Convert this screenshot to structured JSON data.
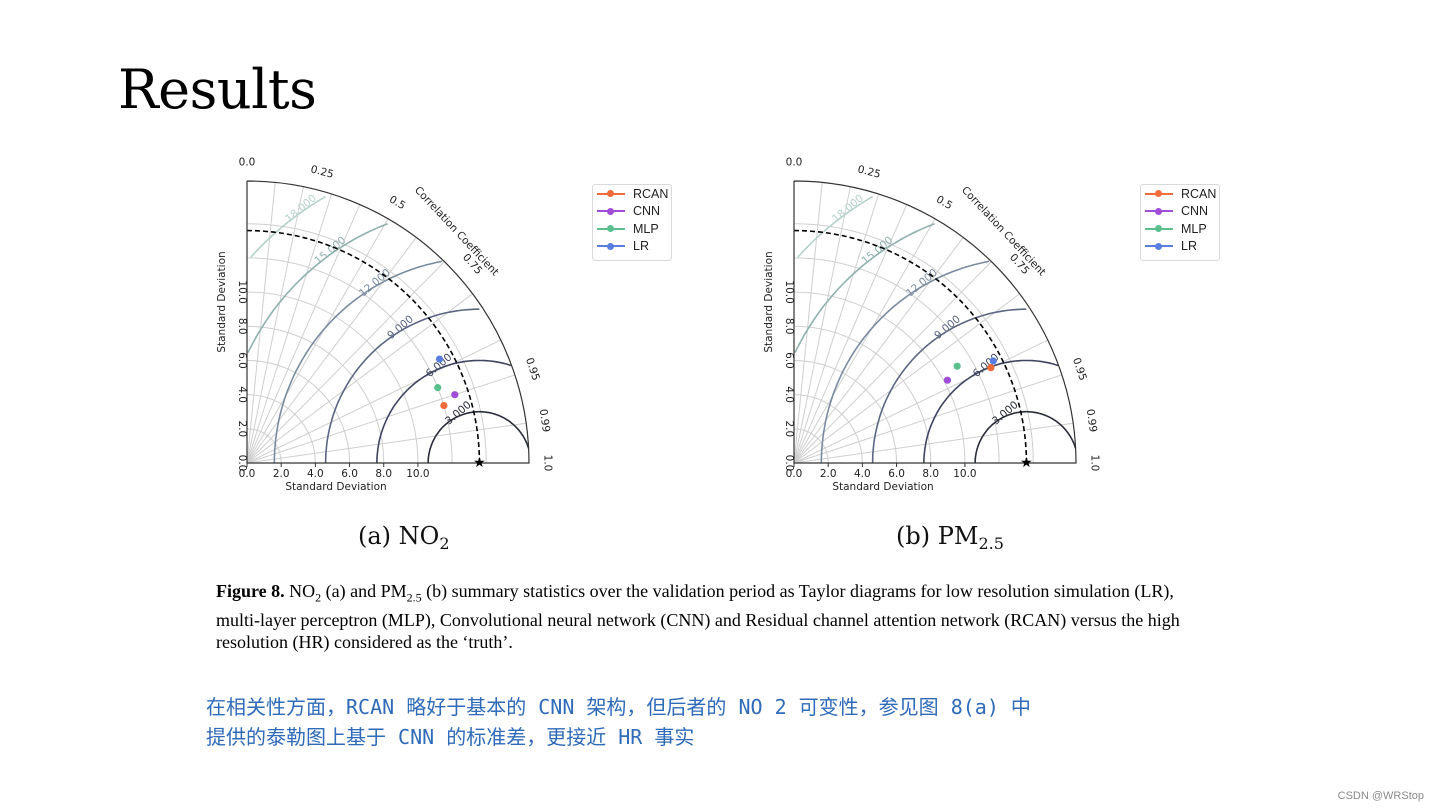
{
  "slide": {
    "title": "Results",
    "watermark": "CSDN @WRStop"
  },
  "caption": {
    "label": "Figure 8.",
    "p1": " NO",
    "p1_sub": "2",
    "p2": " (a) and PM",
    "p2_sub": "2.5",
    "p3": " (b) summary statistics over the validation period as Taylor diagrams for low resolution simulation (LR), multi-layer perceptron (MLP), Convolutional neural network (CNN) and Residual channel attention network (RCAN) versus the high resolution (HR) considered as the ‘truth’."
  },
  "note": {
    "line1": "在相关性方面，RCAN 略好于基本的 CNN 架构，但后者的 NO 2 可变性，参见图 8(a) 中",
    "line2": "提供的泰勒图上基于 CNN 的标准差，更接近 HR 事实"
  },
  "chart_data": [
    {
      "type": "scatter",
      "subplot": "taylor-diagram",
      "panel_label": "(a) NO",
      "panel_label_sub": "2",
      "xlabel": "Standard Deviation",
      "ylabel": "Standard Deviation",
      "corr_label": "Correlation Coefficient",
      "std_range": [
        0,
        16.5
      ],
      "std_ticks": [
        "0.0",
        "2.0",
        "4.0",
        "6.0",
        "8.0",
        "10.0"
      ],
      "corr_ticks": [
        "0.0",
        "0.25",
        "0.5",
        "0.75",
        "0.95",
        "0.99",
        "1.0"
      ],
      "rms_contour_labels": [
        "3.000",
        "6.000",
        "9.000",
        "12.000",
        "15.000",
        "18.000"
      ],
      "reference": {
        "name": "HR",
        "std": 13.6
      },
      "series": [
        {
          "name": "RCAN",
          "color": "#f26b3a",
          "corr": 0.96,
          "std": 12.0
        },
        {
          "name": "CNN",
          "color": "#a04ed8",
          "corr": 0.95,
          "std": 12.8
        },
        {
          "name": "MLP",
          "color": "#5cc08e",
          "corr": 0.93,
          "std": 12.0
        },
        {
          "name": "LR",
          "color": "#5a7de0",
          "corr": 0.88,
          "std": 12.8
        }
      ],
      "legend_position": "upper-right"
    },
    {
      "type": "scatter",
      "subplot": "taylor-diagram",
      "panel_label": "(b) PM",
      "panel_label_sub": "2.5",
      "xlabel": "Standard Deviation",
      "ylabel": "Standard Deviation",
      "corr_label": "Correlation Coefficient",
      "std_range": [
        0,
        16.5
      ],
      "std_ticks": [
        "0.0",
        "2.0",
        "4.0",
        "6.0",
        "8.0",
        "10.0"
      ],
      "corr_ticks": [
        "0.0",
        "0.25",
        "0.5",
        "0.75",
        "0.95",
        "0.99",
        "1.0"
      ],
      "rms_contour_labels": [
        "3.000",
        "6.000",
        "9.000",
        "12.000",
        "15.000",
        "18.000"
      ],
      "reference": {
        "name": "HR",
        "std": 13.6
      },
      "series": [
        {
          "name": "RCAN",
          "color": "#f26b3a",
          "corr": 0.9,
          "std": 12.8
        },
        {
          "name": "CNN",
          "color": "#a04ed8",
          "corr": 0.88,
          "std": 10.2
        },
        {
          "name": "MLP",
          "color": "#5cc08e",
          "corr": 0.86,
          "std": 11.1
        },
        {
          "name": "LR",
          "color": "#5a7de0",
          "corr": 0.89,
          "std": 13.1
        }
      ],
      "legend_position": "upper-right"
    }
  ]
}
